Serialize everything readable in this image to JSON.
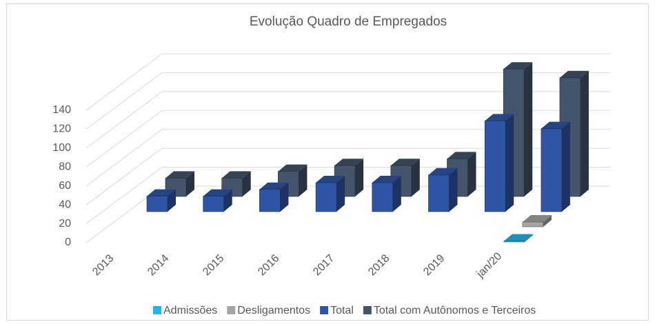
{
  "chart_data": {
    "type": "bar3d",
    "title": "Evolução Quadro de Empregados",
    "categories": [
      "2013",
      "2014",
      "2015",
      "2016",
      "2017",
      "2018",
      "2019",
      "jan/20"
    ],
    "series": [
      {
        "name": "Admissões",
        "color": "#1fb7ea",
        "values": [
          null,
          null,
          null,
          null,
          null,
          null,
          null,
          1
        ]
      },
      {
        "name": "Desligamentos",
        "color": "#a5a5a5",
        "values": [
          null,
          null,
          null,
          null,
          null,
          null,
          null,
          5
        ]
      },
      {
        "name": "Total",
        "color": "#2e55a5",
        "values": [
          16,
          16,
          23,
          30,
          30,
          38,
          94,
          86
        ]
      },
      {
        "name": "Total com Autônomos e Terceiros",
        "color": "#44546a",
        "values": [
          19,
          19,
          26,
          32,
          32,
          39,
          132,
          123
        ]
      }
    ],
    "ylim": [
      0,
      140
    ],
    "yticks": [
      0,
      20,
      40,
      60,
      80,
      100,
      120,
      140
    ],
    "grid": true,
    "legend": "bottom"
  }
}
